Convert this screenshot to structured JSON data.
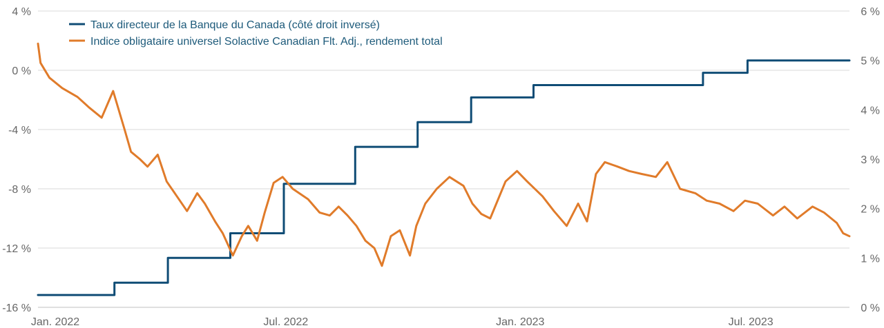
{
  "chart_data": {
    "type": "line",
    "title": "",
    "x_tick_labels": [
      "Jan. 2022",
      "Jul. 2022",
      "Jan. 2023",
      "Jul. 2023"
    ],
    "x_ticks": [
      "2022-01-01",
      "2022-07-01",
      "2023-01-01",
      "2023-07-01"
    ],
    "x_range": [
      "2022-01-01",
      "2023-09-30"
    ],
    "y_left": {
      "tick_labels": [
        "4 %",
        "0 %",
        "-4 %",
        "-8 %",
        "-12 %",
        "-16 %"
      ],
      "ticks": [
        4,
        0,
        -4,
        -8,
        -12,
        -16
      ],
      "range": [
        -16,
        4
      ]
    },
    "y_right": {
      "tick_labels": [
        "6 %",
        "5 %",
        "4 %",
        "3 %",
        "2 %",
        "1 %",
        "0 %"
      ],
      "ticks": [
        6,
        5,
        4,
        3,
        2,
        1,
        0
      ],
      "range": [
        0,
        6
      ]
    },
    "grid": "horizontal",
    "legend_position": "top-left",
    "series": [
      {
        "name": "Taux directeur de la Banque du Canada (côté droit inversé)",
        "axis": "right",
        "color": "#0f4c75",
        "step": true,
        "x": [
          "2022-01-01",
          "2022-03-02",
          "2022-04-13",
          "2022-06-01",
          "2022-07-13",
          "2022-09-07",
          "2022-10-26",
          "2022-12-07",
          "2023-01-25",
          "2023-06-07",
          "2023-07-12",
          "2023-09-30"
        ],
        "y": [
          0.25,
          0.5,
          1.0,
          1.5,
          2.5,
          3.25,
          3.75,
          4.25,
          4.5,
          4.75,
          5.0,
          5.0
        ]
      },
      {
        "name": "Indice obligataire universel Solactive Canadian Flt. Adj., rendement total",
        "axis": "left",
        "color": "#e07b2a",
        "x": [
          "2022-01-01",
          "2022-01-03",
          "2022-01-10",
          "2022-01-20",
          "2022-02-01",
          "2022-02-10",
          "2022-02-20",
          "2022-03-01",
          "2022-03-10",
          "2022-03-15",
          "2022-03-22",
          "2022-03-28",
          "2022-04-05",
          "2022-04-12",
          "2022-04-20",
          "2022-04-28",
          "2022-05-06",
          "2022-05-12",
          "2022-05-20",
          "2022-05-26",
          "2022-06-03",
          "2022-06-10",
          "2022-06-15",
          "2022-06-22",
          "2022-06-28",
          "2022-07-05",
          "2022-07-12",
          "2022-07-20",
          "2022-08-01",
          "2022-08-10",
          "2022-08-18",
          "2022-08-25",
          "2022-09-01",
          "2022-09-08",
          "2022-09-15",
          "2022-09-22",
          "2022-09-28",
          "2022-10-05",
          "2022-10-12",
          "2022-10-20",
          "2022-10-25",
          "2022-11-01",
          "2022-11-10",
          "2022-11-20",
          "2022-12-01",
          "2022-12-08",
          "2022-12-15",
          "2022-12-22",
          "2023-01-03",
          "2023-01-12",
          "2023-01-20",
          "2023-02-01",
          "2023-02-10",
          "2023-02-20",
          "2023-03-01",
          "2023-03-08",
          "2023-03-15",
          "2023-03-22",
          "2023-04-01",
          "2023-04-10",
          "2023-04-20",
          "2023-05-01",
          "2023-05-10",
          "2023-05-20",
          "2023-06-01",
          "2023-06-10",
          "2023-06-20",
          "2023-07-01",
          "2023-07-10",
          "2023-07-20",
          "2023-08-01",
          "2023-08-10",
          "2023-08-20",
          "2023-09-01",
          "2023-09-10",
          "2023-09-20",
          "2023-09-25",
          "2023-09-30"
        ],
        "y": [
          1.8,
          0.5,
          -0.5,
          -1.2,
          -1.8,
          -2.5,
          -3.2,
          -1.4,
          -4.0,
          -5.5,
          -6.0,
          -6.5,
          -5.7,
          -7.5,
          -8.5,
          -9.5,
          -8.3,
          -9.0,
          -10.2,
          -11.0,
          -12.5,
          -11.2,
          -10.5,
          -11.5,
          -9.6,
          -7.6,
          -7.2,
          -8.0,
          -8.7,
          -9.6,
          -9.8,
          -9.2,
          -9.8,
          -10.5,
          -11.5,
          -12.0,
          -13.2,
          -11.2,
          -10.8,
          -12.5,
          -10.5,
          -9.0,
          -8.0,
          -7.2,
          -7.8,
          -9.0,
          -9.7,
          -10.0,
          -7.5,
          -6.8,
          -7.5,
          -8.5,
          -9.5,
          -10.5,
          -9.0,
          -10.2,
          -7.0,
          -6.2,
          -6.5,
          -6.8,
          -7.0,
          -7.2,
          -6.2,
          -8.0,
          -8.3,
          -8.8,
          -9.0,
          -9.5,
          -8.8,
          -9.0,
          -9.8,
          -9.2,
          -10.0,
          -9.2,
          -9.6,
          -10.3,
          -11.0,
          -11.2
        ]
      }
    ]
  }
}
